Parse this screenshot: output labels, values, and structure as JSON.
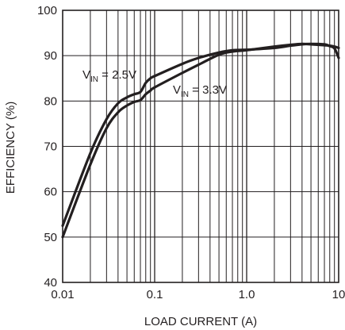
{
  "chart_data": {
    "type": "line",
    "title": "",
    "xlabel": "LOAD CURRENT (A)",
    "ylabel": "EFFICIENCY (%)",
    "xscale": "log",
    "xlim": [
      0.01,
      10
    ],
    "ylim": [
      40,
      100
    ],
    "x_ticks": [
      {
        "value": 0.01,
        "label": "0.01"
      },
      {
        "value": 0.1,
        "label": "0.1"
      },
      {
        "value": 1,
        "label": "1.0"
      },
      {
        "value": 10,
        "label": "10"
      }
    ],
    "y_ticks": [
      {
        "value": 40,
        "label": "40"
      },
      {
        "value": 50,
        "label": "50"
      },
      {
        "value": 60,
        "label": "60"
      },
      {
        "value": 70,
        "label": "70"
      },
      {
        "value": 80,
        "label": "80"
      },
      {
        "value": 90,
        "label": "90"
      },
      {
        "value": 100,
        "label": "100"
      }
    ],
    "grid": true,
    "legend": "none",
    "series": [
      {
        "name": "VIN = 2.5V",
        "label_main": "V",
        "label_sub": "IN",
        "label_rest": " = 2.5V",
        "x": [
          0.01,
          0.02,
          0.03,
          0.04,
          0.05,
          0.06,
          0.07,
          0.08,
          0.09,
          0.1,
          0.2,
          0.3,
          0.5,
          0.7,
          1,
          2,
          3,
          4,
          5,
          7,
          8,
          9,
          10
        ],
        "y": [
          52.5,
          68.5,
          76,
          79.5,
          80.8,
          81.5,
          82,
          84,
          85,
          85.5,
          88.2,
          89.5,
          90.7,
          91.2,
          91.3,
          91.7,
          92.2,
          92.5,
          92.6,
          92.5,
          92.1,
          91.6,
          89.5
        ]
      },
      {
        "name": "VIN = 3.3V",
        "label_main": "V",
        "label_sub": "IN",
        "label_rest": " = 3.3V",
        "x": [
          0.01,
          0.02,
          0.03,
          0.04,
          0.05,
          0.06,
          0.07,
          0.08,
          0.09,
          0.1,
          0.2,
          0.3,
          0.5,
          0.7,
          1,
          2,
          3,
          4,
          5,
          7,
          8,
          9,
          10
        ],
        "y": [
          50,
          66,
          74,
          77.5,
          79,
          79.8,
          80.2,
          81.5,
          82.3,
          83,
          86.2,
          88,
          90.2,
          90.9,
          91.2,
          92,
          92.4,
          92.6,
          92.5,
          92.3,
          92.2,
          92,
          91.7
        ]
      }
    ],
    "colors": {
      "line": "#231f20",
      "grid": "#231f20",
      "background": "#ffffff"
    }
  }
}
